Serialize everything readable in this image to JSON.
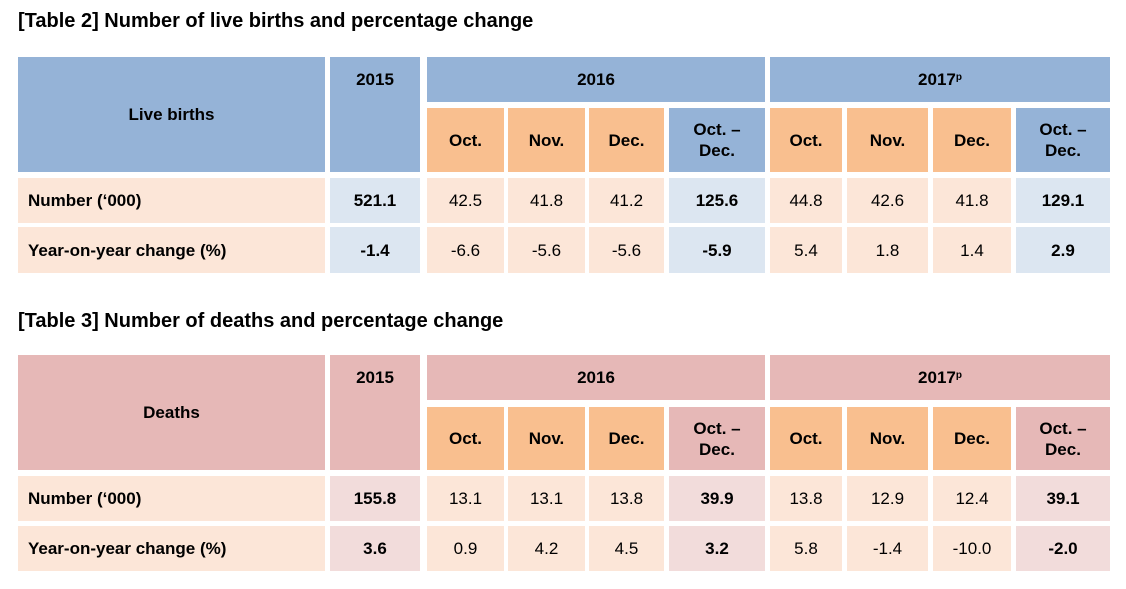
{
  "table2": {
    "title": "[Table 2] Number of live births and percentage change",
    "row_header": "Live births",
    "year_2015": "2015",
    "year_2016": "2016",
    "year_2017": "2017",
    "year_2017_sup": "p",
    "months_2016": [
      "Oct.",
      "Nov.",
      "Dec.",
      "Oct. –\nDec."
    ],
    "months_2017": [
      "Oct.",
      "Nov.",
      "Dec.",
      "Oct. –\nDec."
    ],
    "rows": [
      {
        "label": "Number (‘000)",
        "v2015": "521.1",
        "m2016": [
          "42.5",
          "41.8",
          "41.2",
          "125.6"
        ],
        "m2017": [
          "44.8",
          "42.6",
          "41.8",
          "129.1"
        ]
      },
      {
        "label": "Year-on-year change (%)",
        "v2015": "-1.4",
        "m2016": [
          "-6.6",
          "-5.6",
          "-5.6",
          "-5.9"
        ],
        "m2017": [
          "5.4",
          "1.8",
          "1.4",
          "2.9"
        ]
      }
    ]
  },
  "table3": {
    "title": "[Table 3] Number of deaths and percentage change",
    "row_header": "Deaths",
    "year_2015": "2015",
    "year_2016": "2016",
    "year_2017": "2017",
    "year_2017_sup": "p",
    "months_2016": [
      "Oct.",
      "Nov.",
      "Dec.",
      "Oct. –\nDec."
    ],
    "months_2017": [
      "Oct.",
      "Nov.",
      "Dec.",
      "Oct. –\nDec."
    ],
    "rows": [
      {
        "label": "Number (‘000)",
        "v2015": "155.8",
        "m2016": [
          "13.1",
          "13.1",
          "13.8",
          "39.9"
        ],
        "m2017": [
          "13.8",
          "12.9",
          "12.4",
          "39.1"
        ]
      },
      {
        "label": "Year-on-year change (%)",
        "v2015": "3.6",
        "m2016": [
          "0.9",
          "4.2",
          "4.5",
          "3.2"
        ],
        "m2017": [
          "5.8",
          "-1.4",
          "-10.0",
          "-2.0"
        ]
      }
    ]
  }
}
